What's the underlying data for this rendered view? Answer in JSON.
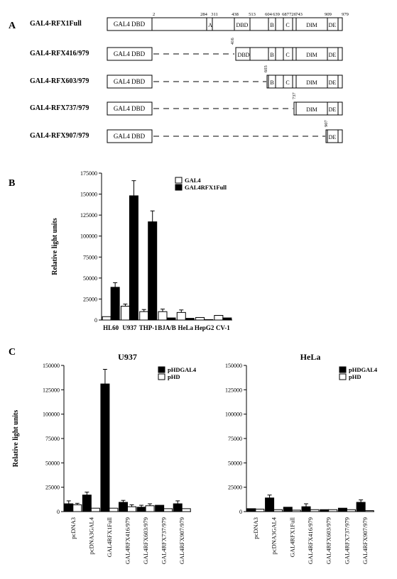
{
  "panel_a": {
    "letter": "A",
    "gal4_label": "GAL4 DBD",
    "constructs": [
      {
        "name": "GAL4-RFX1Full"
      },
      {
        "name": "GAL4-RFX416/979",
        "start_label": "416"
      },
      {
        "name": "GAL4-RFX603/979",
        "start_label": "603"
      },
      {
        "name": "GAL4-RFX737/979",
        "start_label": "737"
      },
      {
        "name": "GAL4-RFX907/979",
        "start_label": "907"
      }
    ],
    "residue_labels": [
      "2",
      "284",
      "311",
      "438",
      "513",
      "604",
      "639",
      "687",
      "726",
      "743",
      "909",
      "979"
    ],
    "domains": {
      "a": "A",
      "dbd": "DBD",
      "b": "B",
      "c": "C",
      "dim": "DIM",
      "de": "DE"
    }
  },
  "chart_data": [
    {
      "type": "bar",
      "panel": "B",
      "categories": [
        "HL60",
        "U937",
        "THP-1",
        "BJA/B",
        "HeLa",
        "HepG2",
        "CV-1"
      ],
      "ylabel": "Relative light units",
      "ylim": [
        0,
        175000
      ],
      "yticks": [
        "0",
        "25000",
        "50000",
        "75000",
        "100000",
        "125000",
        "150000",
        "175000"
      ],
      "legend_position": "top-right",
      "series": [
        {
          "name": "GAL4",
          "fill": "#ffffff",
          "values": [
            4000,
            16500,
            10000,
            10000,
            9000,
            3000,
            5500
          ],
          "errors": [
            0,
            2500,
            2500,
            3000,
            3000,
            0,
            0
          ]
        },
        {
          "name": "GAL4RFX1Full",
          "fill": "#000000",
          "values": [
            39000,
            148000,
            117000,
            2500,
            2000,
            500,
            2500
          ],
          "errors": [
            5500,
            18000,
            13000,
            0,
            0,
            0,
            0
          ]
        }
      ]
    },
    {
      "type": "bar",
      "panel": "C",
      "title": "U937",
      "categories": [
        "pcDNA3",
        "pcDNA3GAL4",
        "GAL4RFX1Full",
        "GAL4RFX416/979",
        "GAL4RFX603/979",
        "GAL4RFX737/979",
        "GAL4RFX907/979"
      ],
      "ylabel": "Relative light units",
      "ylim": [
        0,
        150000
      ],
      "yticks": [
        "0",
        "25000",
        "50000",
        "75000",
        "100000",
        "125000",
        "150000"
      ],
      "legend_position": "top-right",
      "series": [
        {
          "name": "pHDGAL4",
          "fill": "#000000",
          "values": [
            8000,
            17000,
            131000,
            9500,
            4500,
            6500,
            8000
          ],
          "errors": [
            3000,
            3000,
            15000,
            2000,
            2000,
            0,
            3000
          ]
        },
        {
          "name": "pHD",
          "fill": "#ffffff",
          "values": [
            7000,
            3500,
            3500,
            5000,
            6000,
            3000,
            3000
          ],
          "errors": [
            1500,
            0,
            0,
            2000,
            2000,
            0,
            0
          ]
        }
      ]
    },
    {
      "type": "bar",
      "panel": "C",
      "title": "HeLa",
      "categories": [
        "pcDNA3",
        "pcDNA3GAL4",
        "GAL4RFX1Full",
        "GAL4RFX416/979",
        "GAL4RFX603/979",
        "GAL4RFX737/979",
        "GAL4RFX907/979"
      ],
      "ylim": [
        0,
        150000
      ],
      "yticks": [
        "0",
        "25000",
        "50000",
        "75000",
        "100000",
        "125000",
        "150000"
      ],
      "legend_position": "top-right",
      "series": [
        {
          "name": "pHDGAL4",
          "fill": "#000000",
          "values": [
            3000,
            14000,
            4500,
            5000,
            2000,
            3500,
            9500
          ],
          "errors": [
            0,
            3000,
            0,
            3000,
            0,
            0,
            2500
          ]
        },
        {
          "name": "pHD",
          "fill": "#ffffff",
          "values": [
            2500,
            2000,
            1500,
            2000,
            2000,
            2000,
            1000
          ],
          "errors": [
            0,
            0,
            0,
            0,
            0,
            0,
            0
          ]
        }
      ]
    }
  ],
  "panel_b": {
    "letter": "B"
  },
  "panel_c": {
    "letter": "C"
  }
}
